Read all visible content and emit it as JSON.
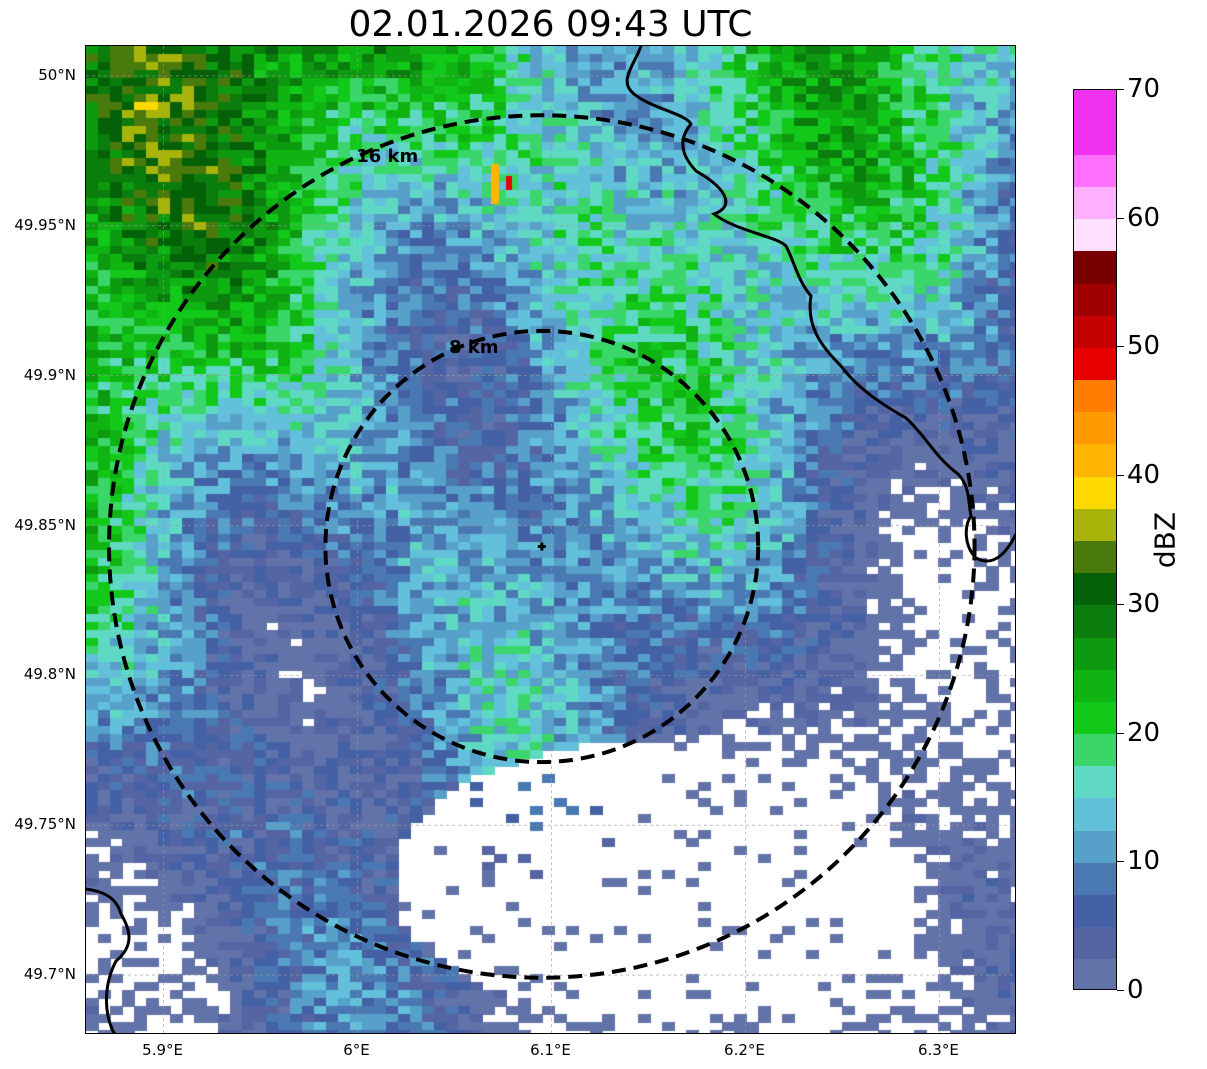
{
  "title": "02.01.2026 09:43 UTC",
  "map": {
    "lon_range": [
      5.86,
      6.34
    ],
    "lat_range": [
      49.68,
      50.01
    ],
    "center": {
      "lon": 6.095,
      "lat": 49.843
    },
    "rings": [
      {
        "radius_km": 8,
        "label": "8 km"
      },
      {
        "radius_km": 16,
        "label": "16 km"
      }
    ],
    "y_ticks": [
      {
        "lat": 50.0,
        "label": "50°N"
      },
      {
        "lat": 49.95,
        "label": "49.95°N"
      },
      {
        "lat": 49.9,
        "label": "49.9°N"
      },
      {
        "lat": 49.85,
        "label": "49.85°N"
      },
      {
        "lat": 49.8,
        "label": "49.8°N"
      },
      {
        "lat": 49.75,
        "label": "49.75°N"
      },
      {
        "lat": 49.7,
        "label": "49.7°N"
      }
    ],
    "x_ticks": [
      {
        "lon": 5.9,
        "label": "5.9°E"
      },
      {
        "lon": 6.0,
        "label": "6°E"
      },
      {
        "lon": 6.1,
        "label": "6.1°E"
      },
      {
        "lon": 6.2,
        "label": "6.2°E"
      },
      {
        "lon": 6.3,
        "label": "6.3°E"
      }
    ]
  },
  "colorbar": {
    "label": "dBZ",
    "min": 0,
    "max": 70,
    "step": 2.5,
    "tick_labels": [
      {
        "value": 0,
        "label": "0"
      },
      {
        "value": 10,
        "label": "10"
      },
      {
        "value": 20,
        "label": "20"
      },
      {
        "value": 30,
        "label": "30"
      },
      {
        "value": 40,
        "label": "40"
      },
      {
        "value": 50,
        "label": "50"
      },
      {
        "value": 60,
        "label": "60"
      },
      {
        "value": 70,
        "label": "70"
      }
    ],
    "colors": [
      "#6273aa",
      "#5565a3",
      "#4461a6",
      "#4a78b2",
      "#56a0ca",
      "#62c0da",
      "#5fd8c4",
      "#3ad66a",
      "#12c91a",
      "#10b412",
      "#0d9a10",
      "#0a7d0c",
      "#056108",
      "#4a7a0c",
      "#a8b40a",
      "#ffd900",
      "#ffb400",
      "#ff9a00",
      "#ff7d00",
      "#e80000",
      "#c50000",
      "#a00000",
      "#7a0000",
      "#ffe0ff",
      "#ffb0ff",
      "#ff70ff",
      "#f032f0",
      "#f032f0"
    ]
  }
}
